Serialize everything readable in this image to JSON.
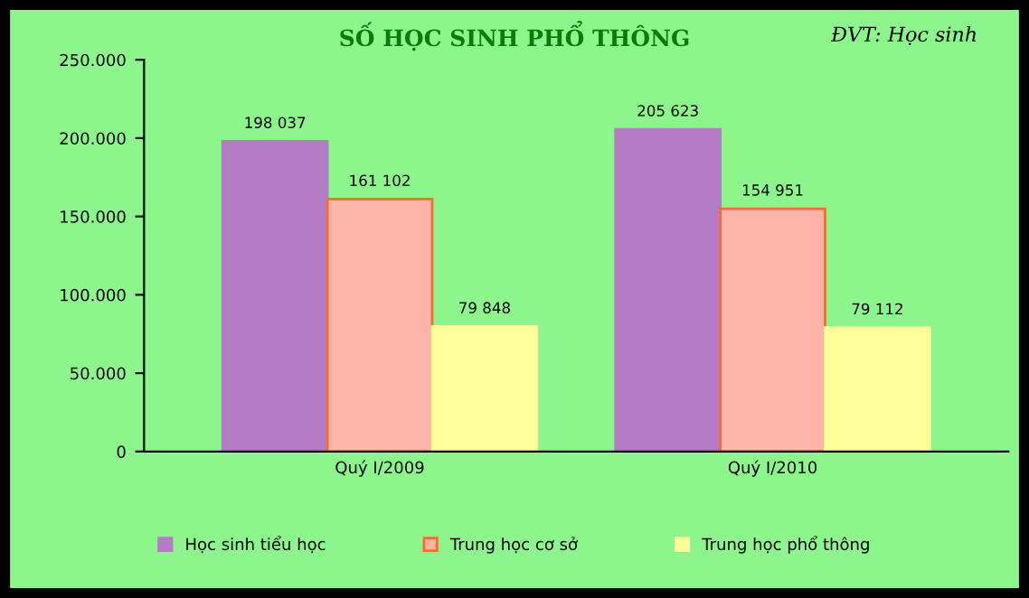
{
  "chart_data": {
    "type": "bar",
    "title": "SỐ HỌC SINH PHỔ THÔNG",
    "annotations": [
      "ĐVT: Học sinh"
    ],
    "categories": [
      "Quý I/2009",
      "Quý I/2010"
    ],
    "series": [
      {
        "name": "Học sinh tiểu học",
        "color": "#b47cc4",
        "values": [
          198037,
          205623
        ],
        "value_labels": [
          "198 037",
          "205 623"
        ]
      },
      {
        "name": "Trung học cơ sở",
        "color": "#ffb4aa",
        "values": [
          161102,
          154951
        ],
        "value_labels": [
          "161 102",
          "154 951"
        ]
      },
      {
        "name": "Trung học phổ thông",
        "color": "#ffff9a",
        "values": [
          79848,
          79112
        ],
        "value_labels": [
          "79 848",
          "79 112"
        ]
      }
    ],
    "ylim": [
      0,
      250000
    ],
    "yticks": [
      {
        "value": 0,
        "label": "0"
      },
      {
        "value": 50000,
        "label": "50.000"
      },
      {
        "value": 100000,
        "label": "100.000"
      },
      {
        "value": 150000,
        "label": "150.000"
      },
      {
        "value": 200000,
        "label": "200.000"
      },
      {
        "value": 250000,
        "label": "250.000"
      }
    ],
    "grid": false,
    "legend": "bottom"
  }
}
